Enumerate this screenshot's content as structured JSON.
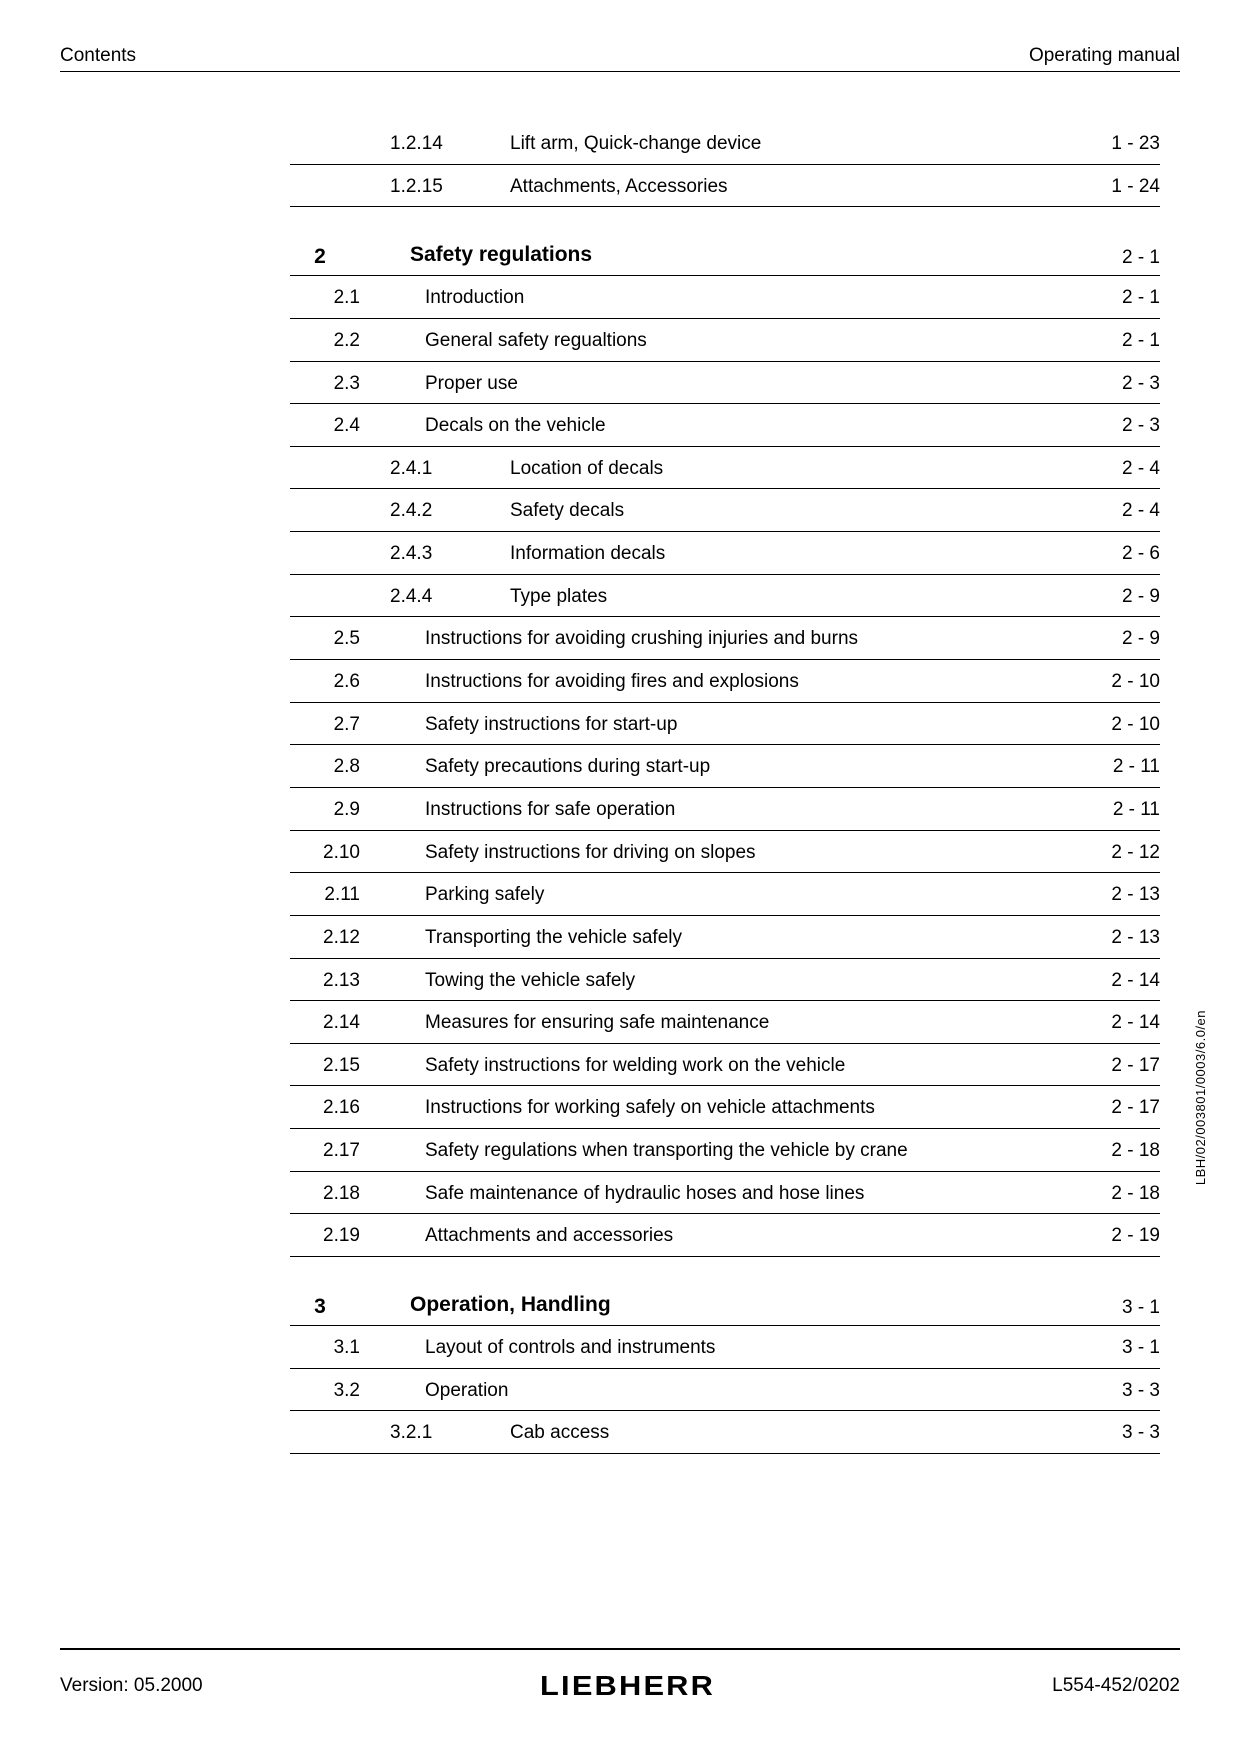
{
  "header": {
    "left": "Contents",
    "right": "Operating manual"
  },
  "side_text": "LBH/02/003801/0003/6.0/en",
  "toc": {
    "pre_items": [
      {
        "num": "1.2.14",
        "title": "Lift arm, Quick-change device",
        "page": "1 - 23",
        "level": 2
      },
      {
        "num": "1.2.15",
        "title": "Attachments, Accessories",
        "page": "1 - 24",
        "level": 2
      }
    ],
    "chapters": [
      {
        "num": "2",
        "title": "Safety regulations",
        "page": "2 - 1",
        "items": [
          {
            "num": "2.1",
            "title": "Introduction",
            "page": "2 - 1",
            "level": 1
          },
          {
            "num": "2.2",
            "title": "General safety regualtions",
            "page": "2 - 1",
            "level": 1
          },
          {
            "num": "2.3",
            "title": "Proper use",
            "page": "2 - 3",
            "level": 1
          },
          {
            "num": "2.4",
            "title": "Decals on the vehicle",
            "page": "2 - 3",
            "level": 1
          },
          {
            "num": "2.4.1",
            "title": "Location of decals",
            "page": "2 - 4",
            "level": 2
          },
          {
            "num": "2.4.2",
            "title": "Safety decals",
            "page": "2 - 4",
            "level": 2
          },
          {
            "num": "2.4.3",
            "title": "Information decals",
            "page": "2 - 6",
            "level": 2
          },
          {
            "num": "2.4.4",
            "title": "Type plates",
            "page": "2 - 9",
            "level": 2
          },
          {
            "num": "2.5",
            "title": "Instructions for avoiding crushing injuries and burns",
            "page": "2 - 9",
            "level": 1
          },
          {
            "num": "2.6",
            "title": "Instructions for avoiding fires and explosions",
            "page": "2 - 10",
            "level": 1
          },
          {
            "num": "2.7",
            "title": "Safety instructions for start-up",
            "page": "2 - 10",
            "level": 1
          },
          {
            "num": "2.8",
            "title": "Safety precautions during start-up",
            "page": "2 - 11",
            "level": 1
          },
          {
            "num": "2.9",
            "title": "Instructions for safe operation",
            "page": "2 - 11",
            "level": 1
          },
          {
            "num": "2.10",
            "title": "Safety instructions for driving on slopes",
            "page": "2 - 12",
            "level": 1
          },
          {
            "num": "2.11",
            "title": "Parking safely",
            "page": "2 - 13",
            "level": 1
          },
          {
            "num": "2.12",
            "title": "Transporting the vehicle safely",
            "page": "2 - 13",
            "level": 1
          },
          {
            "num": "2.13",
            "title": "Towing the vehicle safely",
            "page": "2 - 14",
            "level": 1
          },
          {
            "num": "2.14",
            "title": "Measures for ensuring safe maintenance",
            "page": "2 - 14",
            "level": 1
          },
          {
            "num": "2.15",
            "title": "Safety instructions for welding work on the vehicle",
            "page": "2 - 17",
            "level": 1
          },
          {
            "num": "2.16",
            "title": "Instructions for working safely on vehicle attachments",
            "page": "2 - 17",
            "level": 1
          },
          {
            "num": "2.17",
            "title": "Safety regulations when transporting the vehicle by crane",
            "page": "2 - 18",
            "level": 1
          },
          {
            "num": "2.18",
            "title": "Safe maintenance of hydraulic hoses and hose lines",
            "page": "2 - 18",
            "level": 1
          },
          {
            "num": "2.19",
            "title": "Attachments and accessories",
            "page": "2 - 19",
            "level": 1
          }
        ]
      },
      {
        "num": "3",
        "title": "Operation, Handling",
        "page": "3 - 1",
        "items": [
          {
            "num": "3.1",
            "title": "Layout of controls and instruments",
            "page": "3 - 1",
            "level": 1
          },
          {
            "num": "3.2",
            "title": "Operation",
            "page": "3 - 3",
            "level": 1
          },
          {
            "num": "3.2.1",
            "title": "Cab access",
            "page": "3 - 3",
            "level": 2
          }
        ]
      }
    ]
  },
  "footer": {
    "left": "Version: 05.2000",
    "logo": "LIEBHERR",
    "right": "L554-452/0202"
  }
}
